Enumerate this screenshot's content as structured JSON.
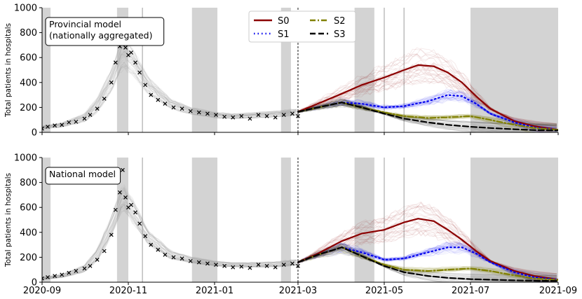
{
  "chart_data": [
    {
      "type": "line",
      "panel_label": "Provincial model\n(nationally aggregated)",
      "ylabel": "Total patients in hospitals",
      "ylim": [
        0,
        1000
      ],
      "yticks": [
        0,
        200,
        400,
        600,
        800,
        1000
      ],
      "xlim": [
        "2020-09-01",
        "2021-09-01"
      ],
      "xticks": [
        "2020-09",
        "2020-11",
        "2021-01",
        "2021-03",
        "2021-05",
        "2021-07",
        "2021-09"
      ],
      "shaded_periods": [
        [
          "2020-09-01",
          "2020-09-07"
        ],
        [
          "2020-10-24",
          "2020-11-01"
        ],
        [
          "2020-12-16",
          "2021-01-03"
        ],
        [
          "2021-02-17",
          "2021-02-24"
        ],
        [
          "2021-04-10",
          "2021-04-24"
        ],
        [
          "2021-07-01",
          "2021-09-01"
        ]
      ],
      "vertical_lines": [
        "2020-11-11",
        "2021-05-01",
        "2021-05-15",
        "2021-03-01"
      ],
      "fit_band": {
        "dates": [
          "2020-09-01",
          "2020-09-15",
          "2020-10-01",
          "2020-10-10",
          "2020-10-20",
          "2020-10-28",
          "2020-11-05",
          "2020-11-15",
          "2020-12-01",
          "2020-12-15",
          "2021-01-01",
          "2021-01-15",
          "2021-02-01",
          "2021-02-15",
          "2021-03-01"
        ],
        "median": [
          40,
          60,
          120,
          220,
          420,
          650,
          560,
          380,
          230,
          175,
          140,
          130,
          140,
          150,
          165
        ],
        "spread": [
          10,
          15,
          30,
          50,
          80,
          110,
          90,
          60,
          35,
          25,
          20,
          18,
          20,
          22,
          25
        ]
      },
      "observed": {
        "dates": [
          "2020-09-01",
          "2020-09-05",
          "2020-09-10",
          "2020-09-15",
          "2020-09-20",
          "2020-09-25",
          "2020-10-01",
          "2020-10-05",
          "2020-10-10",
          "2020-10-15",
          "2020-10-20",
          "2020-10-23",
          "2020-10-26",
          "2020-10-28",
          "2020-10-30",
          "2020-11-01",
          "2020-11-03",
          "2020-11-06",
          "2020-11-09",
          "2020-11-13",
          "2020-11-17",
          "2020-11-22",
          "2020-11-27",
          "2020-12-03",
          "2020-12-09",
          "2020-12-15",
          "2020-12-21",
          "2020-12-27",
          "2021-01-02",
          "2021-01-08",
          "2021-01-14",
          "2021-01-20",
          "2021-01-26",
          "2021-02-01",
          "2021-02-07",
          "2021-02-13",
          "2021-02-19",
          "2021-02-25",
          "2021-03-01"
        ],
        "values": [
          30,
          45,
          55,
          60,
          80,
          85,
          110,
          140,
          190,
          270,
          400,
          560,
          690,
          710,
          680,
          620,
          640,
          560,
          480,
          380,
          300,
          260,
          230,
          200,
          190,
          170,
          160,
          150,
          140,
          125,
          120,
          130,
          110,
          140,
          130,
          120,
          140,
          150,
          130
        ]
      },
      "series": [
        {
          "name": "S0",
          "color": "#8b0000",
          "style": "solid",
          "dates": [
            "2021-03-01",
            "2021-03-15",
            "2021-04-01",
            "2021-04-15",
            "2021-05-01",
            "2021-05-15",
            "2021-05-25",
            "2021-06-05",
            "2021-06-15",
            "2021-06-25",
            "2021-07-05",
            "2021-07-15",
            "2021-08-01",
            "2021-08-15",
            "2021-09-01"
          ],
          "values": [
            165,
            230,
            310,
            380,
            440,
            500,
            540,
            530,
            480,
            400,
            290,
            190,
            90,
            50,
            20
          ]
        },
        {
          "name": "S1",
          "color": "#0000ee",
          "style": "dotted",
          "dates": [
            "2021-03-01",
            "2021-03-15",
            "2021-04-01",
            "2021-04-15",
            "2021-05-01",
            "2021-05-15",
            "2021-06-01",
            "2021-06-15",
            "2021-06-25",
            "2021-07-05",
            "2021-07-15",
            "2021-08-01",
            "2021-08-15",
            "2021-09-01"
          ],
          "values": [
            165,
            200,
            240,
            230,
            200,
            210,
            250,
            300,
            290,
            230,
            150,
            80,
            40,
            20
          ]
        },
        {
          "name": "S2",
          "color": "#808000",
          "style": "dashdot",
          "dates": [
            "2021-03-01",
            "2021-03-15",
            "2021-04-01",
            "2021-04-15",
            "2021-05-01",
            "2021-05-15",
            "2021-06-01",
            "2021-06-15",
            "2021-07-01",
            "2021-07-15",
            "2021-08-01",
            "2021-08-15",
            "2021-09-01"
          ],
          "values": [
            165,
            200,
            240,
            200,
            160,
            130,
            115,
            120,
            130,
            100,
            60,
            35,
            20
          ]
        },
        {
          "name": "S3",
          "color": "#000000",
          "style": "dashed",
          "dates": [
            "2021-03-01",
            "2021-03-15",
            "2021-04-01",
            "2021-04-15",
            "2021-05-01",
            "2021-05-15",
            "2021-06-01",
            "2021-06-15",
            "2021-07-01",
            "2021-07-15",
            "2021-08-01",
            "2021-08-15",
            "2021-09-01"
          ],
          "values": [
            165,
            200,
            240,
            200,
            150,
            110,
            80,
            60,
            45,
            35,
            25,
            18,
            15
          ]
        }
      ]
    },
    {
      "type": "line",
      "panel_label": "National model",
      "ylabel": "Total patients in hospitals",
      "ylim": [
        0,
        1000
      ],
      "yticks": [
        0,
        200,
        400,
        600,
        800,
        1000
      ],
      "xlim": [
        "2020-09-01",
        "2021-09-01"
      ],
      "xticks": [
        "2020-09",
        "2020-11",
        "2021-01",
        "2021-03",
        "2021-05",
        "2021-07",
        "2021-09"
      ],
      "shaded_periods": [
        [
          "2020-09-01",
          "2020-09-07"
        ],
        [
          "2020-10-24",
          "2020-11-01"
        ],
        [
          "2020-12-16",
          "2021-01-03"
        ],
        [
          "2021-02-17",
          "2021-02-24"
        ],
        [
          "2021-04-10",
          "2021-04-24"
        ],
        [
          "2021-07-01",
          "2021-09-01"
        ]
      ],
      "vertical_lines": [
        "2020-11-11",
        "2021-05-01",
        "2021-05-15",
        "2021-03-01"
      ],
      "fit_band": {
        "dates": [
          "2020-09-01",
          "2020-09-15",
          "2020-10-01",
          "2020-10-10",
          "2020-10-20",
          "2020-10-28",
          "2020-11-05",
          "2020-11-15",
          "2020-12-01",
          "2020-12-15",
          "2021-01-01",
          "2021-01-15",
          "2021-02-01",
          "2021-02-15",
          "2021-03-01"
        ],
        "median": [
          30,
          50,
          110,
          220,
          450,
          690,
          560,
          360,
          220,
          180,
          150,
          140,
          140,
          145,
          160
        ],
        "spread": [
          8,
          12,
          25,
          45,
          70,
          90,
          80,
          50,
          30,
          22,
          18,
          16,
          18,
          20,
          22
        ]
      },
      "observed": {
        "dates": [
          "2020-09-01",
          "2020-09-05",
          "2020-09-10",
          "2020-09-15",
          "2020-09-20",
          "2020-09-25",
          "2020-10-01",
          "2020-10-05",
          "2020-10-10",
          "2020-10-15",
          "2020-10-20",
          "2020-10-23",
          "2020-10-26",
          "2020-10-28",
          "2020-10-30",
          "2020-11-01",
          "2020-11-03",
          "2020-11-06",
          "2020-11-09",
          "2020-11-13",
          "2020-11-17",
          "2020-11-22",
          "2020-11-27",
          "2020-12-03",
          "2020-12-09",
          "2020-12-15",
          "2020-12-21",
          "2020-12-27",
          "2021-01-02",
          "2021-01-08",
          "2021-01-14",
          "2021-01-20",
          "2021-01-26",
          "2021-02-01",
          "2021-02-07",
          "2021-02-13",
          "2021-02-19",
          "2021-02-25",
          "2021-03-01"
        ],
        "values": [
          30,
          40,
          50,
          60,
          75,
          90,
          110,
          130,
          180,
          250,
          380,
          580,
          720,
          900,
          680,
          600,
          620,
          560,
          470,
          370,
          300,
          260,
          220,
          200,
          190,
          170,
          160,
          150,
          140,
          130,
          120,
          125,
          115,
          140,
          130,
          120,
          140,
          150,
          130
        ]
      },
      "series": [
        {
          "name": "S0",
          "color": "#8b0000",
          "style": "solid",
          "dates": [
            "2021-03-01",
            "2021-03-15",
            "2021-04-01",
            "2021-04-15",
            "2021-05-01",
            "2021-05-15",
            "2021-05-25",
            "2021-06-05",
            "2021-06-15",
            "2021-06-25",
            "2021-07-05",
            "2021-07-15",
            "2021-08-01",
            "2021-08-15",
            "2021-09-01"
          ],
          "values": [
            160,
            230,
            330,
            390,
            420,
            480,
            510,
            490,
            420,
            340,
            250,
            170,
            90,
            50,
            20
          ]
        },
        {
          "name": "S1",
          "color": "#0000ee",
          "style": "dotted",
          "dates": [
            "2021-03-01",
            "2021-03-15",
            "2021-04-01",
            "2021-04-15",
            "2021-05-01",
            "2021-05-15",
            "2021-06-01",
            "2021-06-15",
            "2021-06-25",
            "2021-07-05",
            "2021-07-15",
            "2021-08-01",
            "2021-08-15",
            "2021-09-01"
          ],
          "values": [
            160,
            220,
            280,
            240,
            180,
            190,
            240,
            280,
            280,
            230,
            160,
            80,
            40,
            20
          ]
        },
        {
          "name": "S2",
          "color": "#808000",
          "style": "dashdot",
          "dates": [
            "2021-03-01",
            "2021-03-15",
            "2021-04-01",
            "2021-04-15",
            "2021-05-01",
            "2021-05-15",
            "2021-06-01",
            "2021-06-15",
            "2021-07-01",
            "2021-07-15",
            "2021-08-01",
            "2021-08-15",
            "2021-09-01"
          ],
          "values": [
            160,
            220,
            280,
            210,
            140,
            100,
            90,
            100,
            110,
            90,
            55,
            30,
            18
          ]
        },
        {
          "name": "S3",
          "color": "#000000",
          "style": "dashed",
          "dates": [
            "2021-03-01",
            "2021-03-15",
            "2021-04-01",
            "2021-04-15",
            "2021-05-01",
            "2021-05-15",
            "2021-06-01",
            "2021-06-15",
            "2021-07-01",
            "2021-07-15",
            "2021-08-01",
            "2021-08-15",
            "2021-09-01"
          ],
          "values": [
            160,
            220,
            280,
            210,
            130,
            80,
            50,
            35,
            25,
            20,
            15,
            12,
            10
          ]
        }
      ]
    }
  ],
  "legend": [
    {
      "label": "S0",
      "color": "#8b0000",
      "style": "solid"
    },
    {
      "label": "S1",
      "color": "#0000ee",
      "style": "dotted"
    },
    {
      "label": "S2",
      "color": "#808000",
      "style": "dashdot"
    },
    {
      "label": "S3",
      "color": "#000000",
      "style": "dashed"
    }
  ],
  "colors": {
    "shade": "#d3d3d3",
    "fit_band": "#9a9a9a",
    "observed": "#000000"
  }
}
